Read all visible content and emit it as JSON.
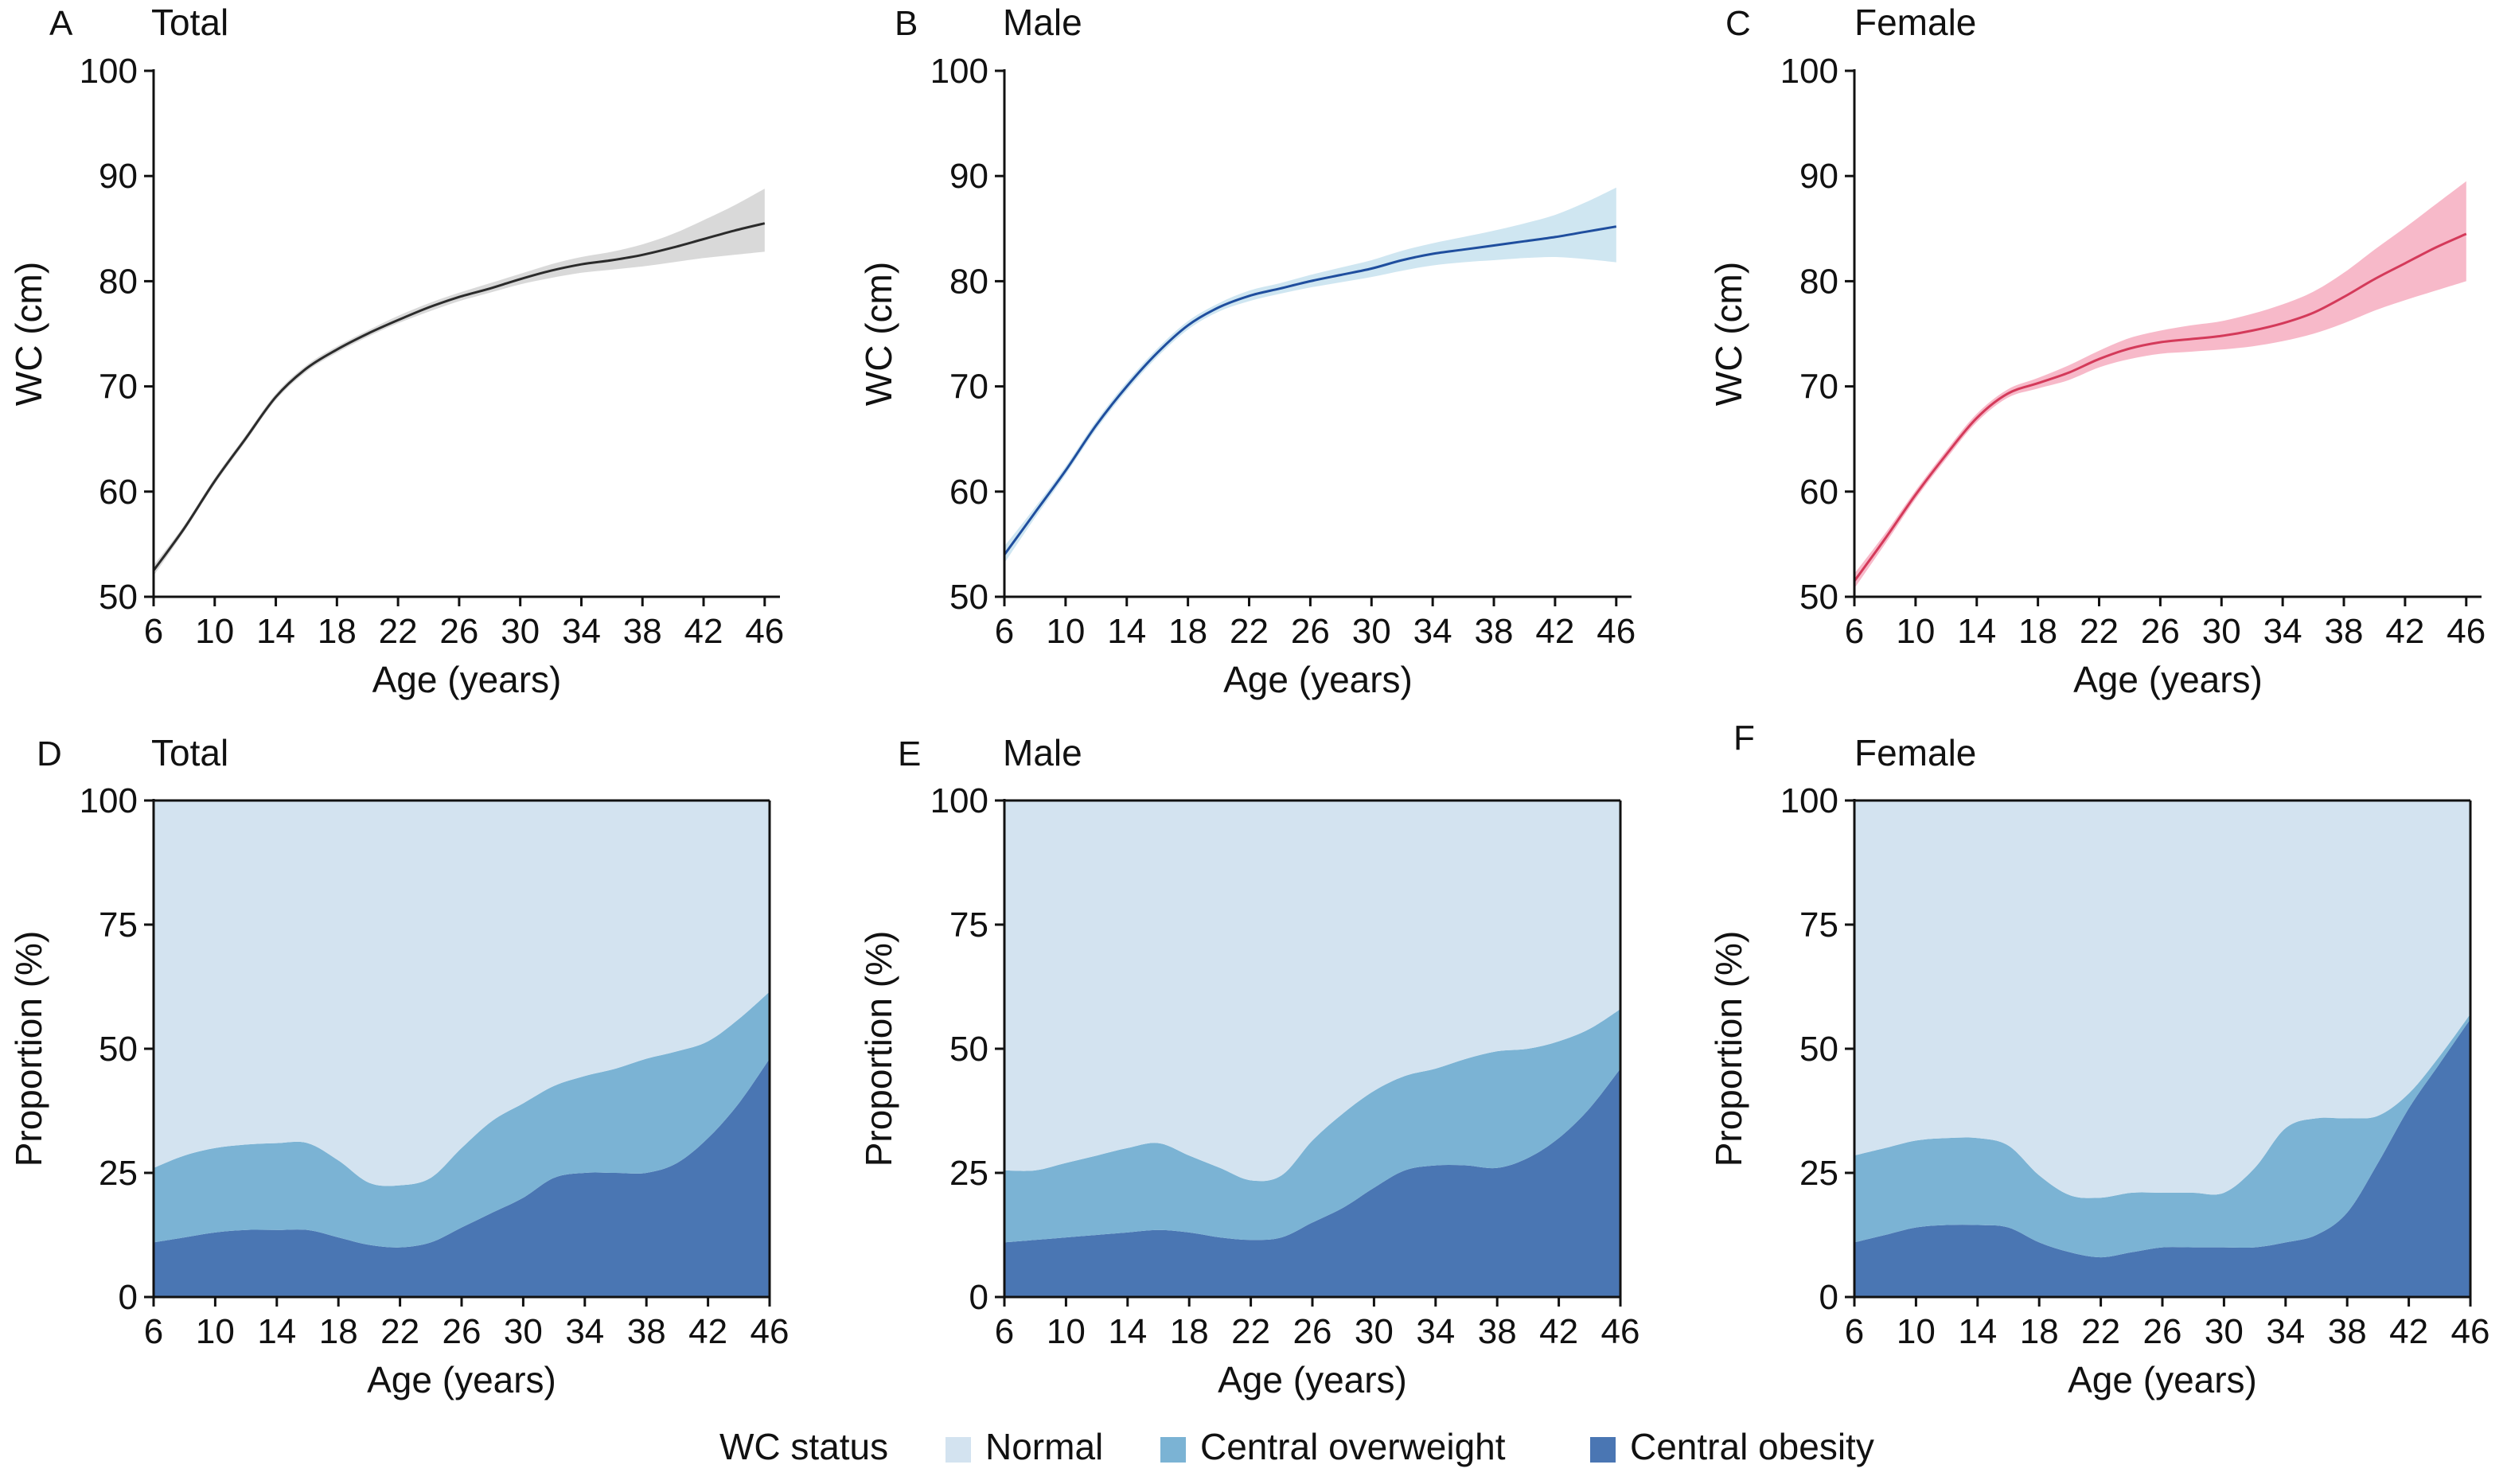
{
  "colors": {
    "total_line": "#2b2b2b",
    "total_band": "#d9d9d9",
    "male_line": "#1f4e9e",
    "male_band": "#cfe6f1",
    "female_line": "#d43a5a",
    "female_band": "#f7b9c9",
    "normal": "#d3e3f0",
    "central_overweight": "#7bb3d4",
    "central_obesity": "#4a76b3"
  },
  "legend": {
    "title": "WC status",
    "items": [
      {
        "label": "Normal",
        "color": "#d3e3f0"
      },
      {
        "label": "Central overweight",
        "color": "#7bb3d4"
      },
      {
        "label": "Central obesity",
        "color": "#4a76b3"
      }
    ]
  },
  "chart_data": [
    {
      "panel": "A",
      "title": "Total",
      "type": "line",
      "xlabel": "Age (years)",
      "ylabel": "WC (cm)",
      "xlim": [
        6,
        47
      ],
      "ylim": [
        50,
        100
      ],
      "xticks": [
        6,
        10,
        14,
        18,
        22,
        26,
        30,
        34,
        38,
        42,
        46
      ],
      "yticks": [
        50,
        60,
        70,
        80,
        90,
        100
      ],
      "line_color": "#2b2b2b",
      "band_color": "#d9d9d9",
      "x": [
        6,
        8,
        10,
        12,
        14,
        16,
        18,
        20,
        22,
        24,
        26,
        28,
        30,
        32,
        34,
        36,
        38,
        40,
        42,
        44,
        46
      ],
      "y": [
        52.5,
        56.5,
        61,
        65,
        69,
        71.7,
        73.5,
        75,
        76.3,
        77.5,
        78.5,
        79.3,
        80.2,
        81,
        81.6,
        82,
        82.5,
        83.2,
        84,
        84.8,
        85.5
      ],
      "lower": [
        52,
        56.2,
        60.7,
        64.7,
        68.7,
        71.4,
        73.2,
        74.7,
        76,
        77.1,
        78.1,
        78.9,
        79.7,
        80.3,
        80.8,
        81.1,
        81.4,
        81.8,
        82.2,
        82.5,
        82.8
      ],
      "upper": [
        53,
        56.8,
        61.3,
        65.3,
        69.3,
        72,
        73.8,
        75.3,
        76.7,
        77.9,
        78.9,
        79.8,
        80.7,
        81.6,
        82.3,
        82.8,
        83.5,
        84.5,
        85.8,
        87.2,
        88.8
      ]
    },
    {
      "panel": "B",
      "title": "Male",
      "type": "line",
      "xlabel": "Age (years)",
      "ylabel": "WC (cm)",
      "xlim": [
        6,
        47
      ],
      "ylim": [
        50,
        100
      ],
      "xticks": [
        6,
        10,
        14,
        18,
        22,
        26,
        30,
        34,
        38,
        42,
        46
      ],
      "yticks": [
        50,
        60,
        70,
        80,
        90,
        100
      ],
      "line_color": "#1f4e9e",
      "band_color": "#cfe6f1",
      "x": [
        6,
        8,
        10,
        12,
        14,
        16,
        18,
        20,
        22,
        24,
        26,
        28,
        30,
        32,
        34,
        36,
        38,
        40,
        42,
        44,
        46
      ],
      "y": [
        54,
        58,
        62,
        66.3,
        70,
        73.2,
        75.8,
        77.5,
        78.6,
        79.3,
        80,
        80.6,
        81.2,
        82,
        82.6,
        83,
        83.4,
        83.8,
        84.2,
        84.7,
        85.2
      ],
      "lower": [
        53.2,
        57.5,
        61.6,
        65.9,
        69.6,
        72.8,
        75.4,
        77.1,
        78.1,
        78.8,
        79.4,
        79.9,
        80.4,
        81,
        81.5,
        81.8,
        82,
        82.2,
        82.3,
        82.1,
        81.8
      ],
      "upper": [
        54.8,
        58.5,
        62.4,
        66.7,
        70.4,
        73.6,
        76.2,
        77.9,
        79.1,
        79.8,
        80.6,
        81.3,
        82,
        82.9,
        83.6,
        84.2,
        84.8,
        85.5,
        86.3,
        87.5,
        88.9
      ]
    },
    {
      "panel": "C",
      "title": "Female",
      "type": "line",
      "xlabel": "Age (years)",
      "ylabel": "WC (cm)",
      "xlim": [
        6,
        47
      ],
      "ylim": [
        50,
        100
      ],
      "xticks": [
        6,
        10,
        14,
        18,
        22,
        26,
        30,
        34,
        38,
        42,
        46
      ],
      "yticks": [
        50,
        60,
        70,
        80,
        90,
        100
      ],
      "line_color": "#d43a5a",
      "band_color": "#f7b9c9",
      "x": [
        6,
        8,
        10,
        12,
        14,
        16,
        18,
        20,
        22,
        24,
        26,
        28,
        30,
        32,
        34,
        36,
        38,
        40,
        42,
        44,
        46
      ],
      "y": [
        51.5,
        55.5,
        59.7,
        63.5,
        67,
        69.3,
        70.3,
        71.3,
        72.6,
        73.6,
        74.2,
        74.5,
        74.8,
        75.3,
        76,
        77,
        78.5,
        80.2,
        81.7,
        83.2,
        84.5
      ],
      "lower": [
        50.8,
        55,
        59.3,
        63.1,
        66.6,
        68.9,
        69.8,
        70.6,
        71.8,
        72.6,
        73.1,
        73.3,
        73.5,
        73.8,
        74.3,
        75,
        76,
        77.2,
        78.2,
        79.1,
        80
      ],
      "upper": [
        52.2,
        56,
        60.1,
        63.9,
        67.4,
        69.7,
        70.8,
        72,
        73.4,
        74.6,
        75.3,
        75.8,
        76.2,
        76.9,
        77.8,
        79,
        80.8,
        83,
        85.1,
        87.3,
        89.5
      ]
    },
    {
      "panel": "D",
      "title": "Total",
      "type": "area",
      "xlabel": "Age (years)",
      "ylabel": "Proportion (%)",
      "xlim": [
        6,
        46
      ],
      "ylim": [
        0,
        100
      ],
      "xticks": [
        6,
        10,
        14,
        18,
        22,
        26,
        30,
        34,
        38,
        42,
        46
      ],
      "yticks": [
        0,
        25,
        50,
        75,
        100
      ],
      "x": [
        6,
        8,
        10,
        12,
        14,
        16,
        18,
        20,
        22,
        24,
        26,
        28,
        30,
        32,
        34,
        36,
        38,
        40,
        42,
        44,
        46
      ],
      "series": [
        {
          "name": "Central obesity",
          "values": [
            11,
            12,
            13,
            13.5,
            13.5,
            13.5,
            12,
            10.5,
            10,
            11,
            14,
            17,
            20,
            24,
            25,
            25,
            25,
            27,
            32,
            39,
            48
          ]
        },
        {
          "name": "Central overweight",
          "values": [
            15,
            16.5,
            17,
            17.2,
            17.5,
            17.5,
            15.5,
            12.5,
            12.5,
            13,
            16,
            18.5,
            19,
            18.5,
            19.5,
            21,
            23,
            22.5,
            19.5,
            17,
            13.5
          ]
        },
        {
          "name": "Normal",
          "values": [
            74,
            71.5,
            70,
            69.3,
            69,
            69,
            72.5,
            77,
            77.5,
            76,
            70,
            64.5,
            61,
            57.5,
            55.5,
            54,
            52,
            50.5,
            48.5,
            44,
            38.5
          ]
        }
      ]
    },
    {
      "panel": "E",
      "title": "Male",
      "type": "area",
      "xlabel": "Age (years)",
      "ylabel": "Proportion (%)",
      "xlim": [
        6,
        46
      ],
      "ylim": [
        0,
        100
      ],
      "xticks": [
        6,
        10,
        14,
        18,
        22,
        26,
        30,
        34,
        38,
        42,
        46
      ],
      "yticks": [
        0,
        25,
        50,
        75,
        100
      ],
      "x": [
        6,
        8,
        10,
        12,
        14,
        16,
        18,
        20,
        22,
        24,
        26,
        28,
        30,
        32,
        34,
        36,
        38,
        40,
        42,
        44,
        46
      ],
      "series": [
        {
          "name": "Central obesity",
          "values": [
            11,
            11.5,
            12,
            12.5,
            13,
            13.5,
            13,
            12,
            11.5,
            12,
            15,
            18,
            22,
            25.5,
            26.5,
            26.5,
            26,
            28,
            32,
            38,
            46
          ]
        },
        {
          "name": "Central overweight",
          "values": [
            14.5,
            14,
            15,
            16,
            17,
            17.5,
            15.5,
            14,
            12,
            12.5,
            16.5,
            19,
            19.5,
            19,
            19.5,
            21.5,
            23.5,
            22,
            19.5,
            16,
            12
          ]
        },
        {
          "name": "Normal",
          "values": [
            74.5,
            74.5,
            73,
            71.5,
            70,
            69,
            71.5,
            74,
            76.5,
            75.5,
            68.5,
            63,
            58.5,
            55.5,
            54,
            52,
            50.5,
            50,
            48.5,
            46,
            42
          ]
        }
      ]
    },
    {
      "panel": "F",
      "title": "Female",
      "type": "area",
      "xlabel": "Age (years)",
      "ylabel": "Proportion (%)",
      "xlim": [
        6,
        46
      ],
      "ylim": [
        0,
        100
      ],
      "xticks": [
        6,
        10,
        14,
        18,
        22,
        26,
        30,
        34,
        38,
        42,
        46
      ],
      "yticks": [
        0,
        25,
        50,
        75,
        100
      ],
      "x": [
        6,
        8,
        10,
        12,
        14,
        16,
        18,
        20,
        22,
        24,
        26,
        28,
        30,
        32,
        34,
        36,
        38,
        40,
        42,
        44,
        46
      ],
      "series": [
        {
          "name": "Central obesity",
          "values": [
            11,
            12.5,
            14,
            14.5,
            14.5,
            14,
            11,
            9,
            8,
            9,
            10,
            10,
            10,
            10,
            11,
            12.5,
            17,
            27,
            38,
            47,
            56
          ]
        },
        {
          "name": "Central overweight",
          "values": [
            17.5,
            17.5,
            17.5,
            17.5,
            17.5,
            16.5,
            13.5,
            11.5,
            12,
            12,
            11,
            11,
            11,
            16,
            23,
            23.5,
            19,
            9.5,
            3,
            1.5,
            1
          ]
        },
        {
          "name": "Normal",
          "values": [
            71.5,
            70,
            68.5,
            68,
            68,
            69.5,
            75.5,
            79.5,
            80,
            79,
            79,
            79,
            79,
            74,
            66,
            64,
            64,
            63.5,
            59,
            51.5,
            43
          ]
        }
      ]
    }
  ]
}
